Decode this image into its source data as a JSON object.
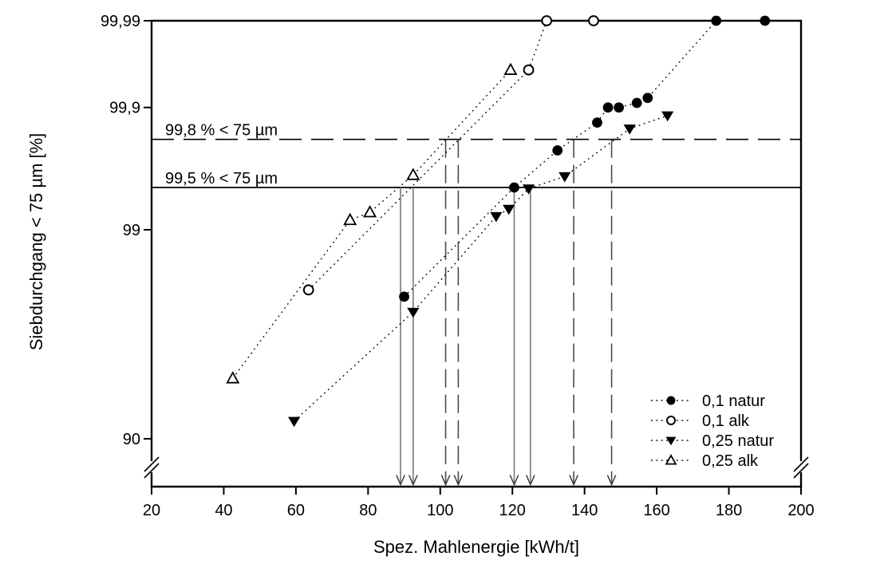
{
  "chart_data": {
    "type": "scatter",
    "title": "",
    "xlabel": "Spez. Mahlenergie [kWh/t]",
    "ylabel": "Siebdurchgang < 75 µm [%]",
    "xlim": [
      20,
      200
    ],
    "x_ticks": [
      20,
      40,
      60,
      80,
      100,
      120,
      140,
      160,
      180,
      200
    ],
    "x_tick_labels": [
      "20",
      "40",
      "60",
      "80",
      "100",
      "120",
      "140",
      "160",
      "180",
      "200"
    ],
    "y_ticks": [
      99.99,
      99.9,
      99,
      90
    ],
    "y_tick_labels": [
      "99,99",
      "99,9",
      "99",
      "90"
    ],
    "y_scale": "RRSB double-log probability grid, axis break below 90",
    "grid": false,
    "legend_position": "lower right",
    "series": [
      {
        "name": "0,1 natur",
        "marker": "filled-circle",
        "line": "dotted",
        "points": [
          [
            90,
            97.5
          ],
          [
            120.5,
            99.5
          ],
          [
            132.5,
            99.75
          ],
          [
            143.5,
            99.86
          ],
          [
            146.5,
            99.9
          ],
          [
            149.5,
            99.9
          ],
          [
            154.5,
            99.91
          ],
          [
            157.5,
            99.92
          ],
          [
            176.5,
            99.99
          ],
          [
            190,
            99.99
          ]
        ]
      },
      {
        "name": "0,1 alk",
        "marker": "open-circle",
        "line": "dotted",
        "points": [
          [
            63.5,
            97.7
          ],
          [
            124.5,
            99.96
          ],
          [
            129.5,
            99.99
          ],
          [
            142.5,
            99.99
          ]
        ]
      },
      {
        "name": "0,25 natur",
        "marker": "filled-triangle-down",
        "line": "dotted",
        "points": [
          [
            59.5,
            91.3
          ],
          [
            92.5,
            97.0
          ],
          [
            115.5,
            99.19
          ],
          [
            119,
            99.28
          ],
          [
            124.5,
            99.49
          ],
          [
            134.5,
            99.59
          ],
          [
            152.5,
            99.84
          ],
          [
            163,
            99.88
          ]
        ]
      },
      {
        "name": "0,25 alk",
        "marker": "open-triangle-up",
        "line": "dotted",
        "points": [
          [
            42.5,
            94.0
          ],
          [
            75,
            99.14
          ],
          [
            80.5,
            99.24
          ],
          [
            92.5,
            99.6
          ],
          [
            119.5,
            99.96
          ]
        ]
      }
    ],
    "reference_lines": [
      {
        "label": "99,8 % < 75 µm",
        "y": 99.8,
        "style": "dashed"
      },
      {
        "label": "99,5 % < 75 µm",
        "y": 99.5,
        "style": "solid"
      }
    ],
    "drop_arrows": [
      {
        "from_y": 99.5,
        "x": 89,
        "style": "solid"
      },
      {
        "from_y": 99.5,
        "x": 92.5,
        "style": "solid"
      },
      {
        "from_y": 99.5,
        "x": 120.5,
        "style": "solid"
      },
      {
        "from_y": 99.5,
        "x": 125,
        "style": "solid"
      },
      {
        "from_y": 99.8,
        "x": 101.5,
        "style": "dashed"
      },
      {
        "from_y": 99.8,
        "x": 105,
        "style": "dashed"
      },
      {
        "from_y": 99.8,
        "x": 137,
        "style": "dashed"
      },
      {
        "from_y": 99.8,
        "x": 147.5,
        "style": "dashed"
      }
    ],
    "legend": {
      "items": [
        "0,1 natur",
        "0,1 alk",
        "0,25 natur",
        "0,25 alk"
      ]
    }
  },
  "colors": {
    "foreground": "#000000",
    "background": "#ffffff",
    "solid_arrow": "#787878",
    "dashed_arrow": "#4a4a4a"
  }
}
